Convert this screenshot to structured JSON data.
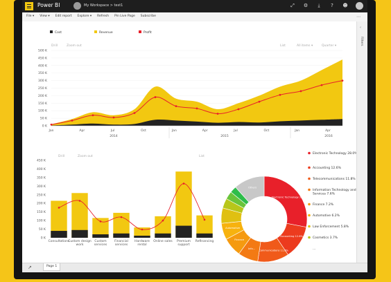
{
  "app": {
    "title": "Power BI",
    "breadcrumb": "My Workspace  >  test1"
  },
  "toolbar": {
    "items": [
      "File ▾",
      "View ▾",
      "Edit report",
      "Explore ▾",
      "Refresh",
      "Pin Live Page",
      "Subscribe"
    ],
    "more": "⋯"
  },
  "top_icons": [
    "expand-icon",
    "settings-icon",
    "download-icon",
    "help-icon",
    "feedback-icon"
  ],
  "filters": {
    "label": "Filters"
  },
  "page_tab": "Page 1",
  "colors": {
    "cost": "#222222",
    "revenue": "#f2c811",
    "profit": "#e8202a"
  },
  "chart_data": [
    {
      "type": "area",
      "legend": [
        "Cost",
        "Revenue",
        "Profit"
      ],
      "controls": {
        "drill": "Drill",
        "zoom": "Zoom out",
        "list": "List",
        "all_items": "All items ▾",
        "quarter": "Quarter ▾"
      },
      "y_ticks": [
        "500 K",
        "450 K",
        "400 K",
        "350 K",
        "300 K",
        "250 K",
        "200 K",
        "150 K",
        "100 K",
        "50 K",
        "0 K"
      ],
      "ylim": [
        0,
        500000
      ],
      "month_labels": [
        "Jan",
        "Apr",
        "Jul",
        "Oct",
        "Jan",
        "Apr",
        "Jul",
        "Oct",
        "Jan",
        "Apr"
      ],
      "year_labels": [
        "2014",
        "2015",
        "2016"
      ],
      "x": [
        0,
        1,
        2,
        3,
        4,
        5,
        6,
        7,
        8,
        9,
        10,
        11,
        12,
        13,
        14
      ],
      "cost": [
        2000,
        8000,
        15000,
        8000,
        12000,
        40000,
        35000,
        28000,
        20000,
        25000,
        22000,
        30000,
        35000,
        40000,
        45000
      ],
      "revenue": [
        10000,
        45000,
        90000,
        70000,
        110000,
        260000,
        180000,
        160000,
        110000,
        150000,
        200000,
        260000,
        300000,
        370000,
        440000
      ],
      "profit": [
        8000,
        35000,
        70000,
        55000,
        85000,
        190000,
        130000,
        115000,
        80000,
        110000,
        160000,
        205000,
        230000,
        270000,
        300000
      ]
    },
    {
      "type": "bar",
      "controls": {
        "drill": "Drill",
        "zoom": "Zoom out",
        "list": "List"
      },
      "y_ticks": [
        "450 K",
        "400 K",
        "350 K",
        "300 K",
        "250 K",
        "200 K",
        "150 K",
        "100 K",
        "50 K",
        "0 K"
      ],
      "ylim": [
        0,
        450000
      ],
      "categories": [
        "Consultations",
        "Custom design work",
        "Custom services",
        "Financial services",
        "Hardware rental",
        "Online sales",
        "Premium support",
        "Refinancing"
      ],
      "revenue": [
        215000,
        260000,
        115000,
        145000,
        60000,
        125000,
        385000,
        130000
      ],
      "cost": [
        40000,
        45000,
        20000,
        25000,
        12000,
        25000,
        70000,
        25000
      ],
      "profit": [
        175000,
        215000,
        95000,
        120000,
        48000,
        100000,
        315000,
        105000
      ]
    },
    {
      "type": "pie",
      "slices": [
        {
          "label": "Electronic Technology 28.0%",
          "inner": "Electronic Technology 28.0%",
          "value": 28.0,
          "color": "#e8202a"
        },
        {
          "label": "Accounting 12.6%",
          "inner": "Accounting 12.6%",
          "value": 12.6,
          "color": "#ec3b1e"
        },
        {
          "label": "Telecommunications 11.8%",
          "inner": "Telecommunications 11.8%",
          "value": 11.8,
          "color": "#f05a1a"
        },
        {
          "label": "Information Technology and Services 7.6%",
          "inner": "Info...",
          "value": 7.6,
          "color": "#f37a14"
        },
        {
          "label": "Finance 7.2%",
          "inner": "Finance",
          "value": 7.2,
          "color": "#f59a10"
        },
        {
          "label": "Automotive 6.2%",
          "inner": "Automotive",
          "value": 6.2,
          "color": "#f7b20e"
        },
        {
          "label": "Law Enforcement 5.8%",
          "inner": "",
          "value": 5.8,
          "color": "#e0c012"
        },
        {
          "label": "Cosmetics 3.7%",
          "inner": "",
          "value": 3.7,
          "color": "#b8c61a"
        },
        {
          "label": "",
          "inner": "",
          "value": 3.0,
          "color": "#6ac43a"
        },
        {
          "label": "",
          "inner": "",
          "value": 2.5,
          "color": "#2ebd4a"
        },
        {
          "label": "",
          "inner": "Others",
          "value": 11.6,
          "color": "#c8c8c8"
        }
      ],
      "more_legend": "..."
    }
  ]
}
